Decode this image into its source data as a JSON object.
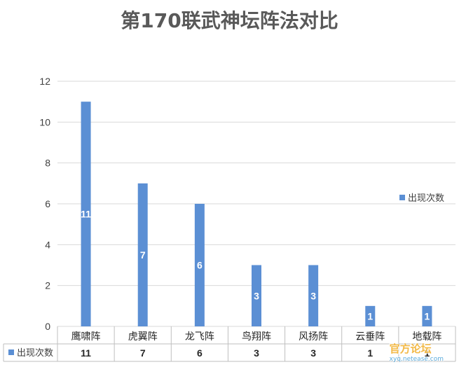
{
  "chart_data": {
    "type": "bar",
    "title": "第170联武神坛阵法对比",
    "categories": [
      "鹰啸阵",
      "虎翼阵",
      "龙飞阵",
      "鸟翔阵",
      "风扬阵",
      "云垂阵",
      "地载阵"
    ],
    "series": [
      {
        "name": "出现次数",
        "values": [
          11,
          7,
          6,
          3,
          3,
          1,
          1
        ],
        "color": "#5b8fd4"
      }
    ],
    "ylim": [
      0,
      12
    ],
    "yticks": [
      0,
      2,
      4,
      6,
      8,
      10,
      12
    ],
    "grid": true,
    "legend": "right",
    "data_table": true
  },
  "watermark": {
    "text": "官方论坛",
    "sub": "xyq.netease.com"
  }
}
